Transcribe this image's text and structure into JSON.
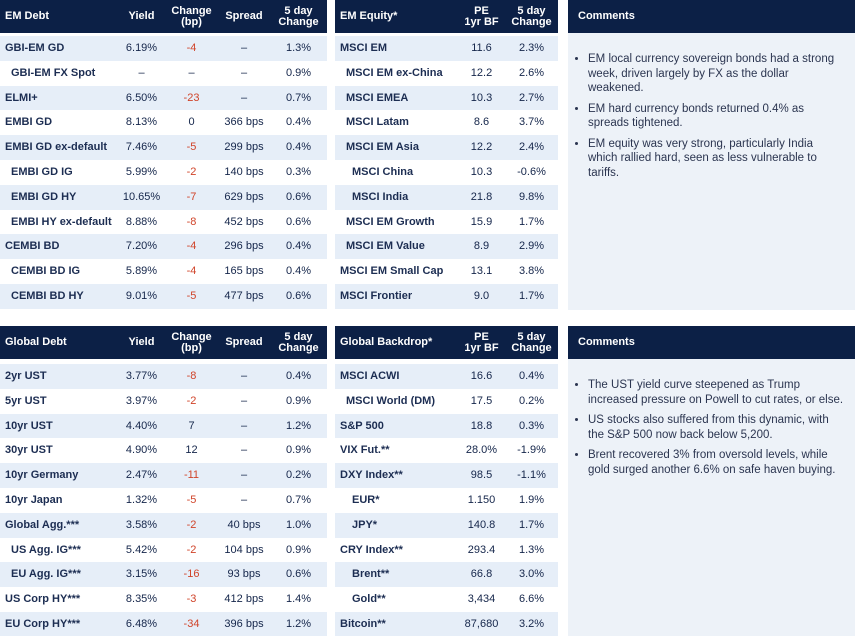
{
  "em_debt": {
    "headers": [
      [
        "EM Debt"
      ],
      [
        "Yield"
      ],
      [
        "Change",
        "(bp)"
      ],
      [
        "Spread"
      ],
      [
        "5 day",
        "Change"
      ]
    ],
    "rows": [
      [
        "GBI-EM GD",
        "6.19%",
        "-4",
        "–",
        "1.3%"
      ],
      [
        "GBI-EM FX Spot",
        "–",
        "–",
        "–",
        "0.9%"
      ],
      [
        "ELMI+",
        "6.50%",
        "-23",
        "–",
        "0.7%"
      ],
      [
        "EMBI GD",
        "8.13%",
        "0",
        "366 bps",
        "0.4%"
      ],
      [
        "EMBI GD ex-default",
        "7.46%",
        "-5",
        "299 bps",
        "0.4%"
      ],
      [
        "EMBI GD IG",
        "5.99%",
        "-2",
        "140 bps",
        "0.3%"
      ],
      [
        "EMBI GD HY",
        "10.65%",
        "-7",
        "629 bps",
        "0.6%"
      ],
      [
        "EMBI HY ex-default",
        "8.88%",
        "-8",
        "452 bps",
        "0.6%"
      ],
      [
        "CEMBI BD",
        "7.20%",
        "-4",
        "296 bps",
        "0.4%"
      ],
      [
        "CEMBI BD IG",
        "5.89%",
        "-4",
        "165 bps",
        "0.4%"
      ],
      [
        "CEMBI BD HY",
        "9.01%",
        "-5",
        "477 bps",
        "0.6%"
      ]
    ]
  },
  "em_equity": {
    "headers": [
      [
        "EM Equity*"
      ],
      [
        "PE",
        "1yr BF"
      ],
      [
        "5 day",
        "Change"
      ]
    ],
    "rows": [
      [
        "MSCI EM",
        "11.6",
        "2.3%"
      ],
      [
        "MSCI EM ex-China",
        "12.2",
        "2.6%"
      ],
      [
        "MSCI EMEA",
        "10.3",
        "2.7%"
      ],
      [
        "MSCI Latam",
        "8.6",
        "3.7%"
      ],
      [
        "MSCI EM Asia",
        "12.2",
        "2.4%"
      ],
      [
        "MSCI China",
        "10.3",
        "-0.6%"
      ],
      [
        "MSCI India",
        "21.8",
        "9.8%"
      ],
      [
        "MSCI EM Growth",
        "15.9",
        "1.7%"
      ],
      [
        "MSCI EM Value",
        "8.9",
        "2.9%"
      ],
      [
        "MSCI EM Small Cap",
        "13.1",
        "3.8%"
      ],
      [
        "MSCI Frontier",
        "9.0",
        "1.7%"
      ]
    ]
  },
  "comments_top": {
    "title": "Comments",
    "bullets": [
      "EM local currency sovereign bonds had a strong week, driven largely by FX as the dollar weakened.",
      "EM hard currency bonds returned 0.4% as spreads tightened.",
      "EM equity was very strong, particularly India which rallied hard, seen as less vulnerable to tariffs."
    ]
  },
  "global_debt": {
    "headers": [
      [
        "Global Debt"
      ],
      [
        "Yield"
      ],
      [
        "Change",
        "(bp)"
      ],
      [
        "Spread"
      ],
      [
        "5 day",
        "Change"
      ]
    ],
    "rows": [
      [
        "2yr UST",
        "3.77%",
        "-8",
        "–",
        "0.4%"
      ],
      [
        "5yr UST",
        "3.97%",
        "-2",
        "–",
        "0.9%"
      ],
      [
        "10yr UST",
        "4.40%",
        "7",
        "–",
        "1.2%"
      ],
      [
        "30yr UST",
        "4.90%",
        "12",
        "–",
        "0.9%"
      ],
      [
        "10yr Germany",
        "2.47%",
        "-11",
        "–",
        "0.2%"
      ],
      [
        "10yr Japan",
        "1.32%",
        "-5",
        "–",
        "0.7%"
      ],
      [
        "Global Agg.***",
        "3.58%",
        "-2",
        "40 bps",
        "1.0%"
      ],
      [
        "US Agg. IG***",
        "5.42%",
        "-2",
        "104 bps",
        "0.9%"
      ],
      [
        "EU Agg. IG***",
        "3.15%",
        "-16",
        "93 bps",
        "0.6%"
      ],
      [
        "US Corp HY***",
        "8.35%",
        "-3",
        "412 bps",
        "1.4%"
      ],
      [
        "EU Corp HY***",
        "6.48%",
        "-34",
        "396 bps",
        "1.2%"
      ]
    ]
  },
  "global_backdrop": {
    "headers": [
      [
        "Global Backdrop*"
      ],
      [
        "PE",
        "1yr BF"
      ],
      [
        "5 day",
        "Change"
      ]
    ],
    "rows": [
      [
        "MSCI ACWI",
        "16.6",
        "0.4%"
      ],
      [
        "MSCI World (DM)",
        "17.5",
        "0.2%"
      ],
      [
        "S&P 500",
        "18.8",
        "0.3%"
      ],
      [
        "VIX Fut.**",
        "28.0%",
        "-1.9%"
      ],
      [
        "DXY Index**",
        "98.5",
        "-1.1%"
      ],
      [
        "EUR*",
        "1.150",
        "1.9%"
      ],
      [
        "JPY*",
        "140.8",
        "1.7%"
      ],
      [
        "CRY Index**",
        "293.4",
        "1.3%"
      ],
      [
        "Brent**",
        "66.8",
        "3.0%"
      ],
      [
        "Gold**",
        "3,434",
        "6.6%"
      ],
      [
        "Bitcoin**",
        "87,680",
        "3.2%"
      ]
    ]
  },
  "comments_bottom": {
    "title": "Comments",
    "bullets": [
      "The UST yield curve steepened as Trump increased pressure on Powell to cut rates, or else.",
      "US stocks also suffered from this dynamic, with the S&P 500 now back below 5,200.",
      "Brent recovered 3% from oversold levels, while gold surged another 6.6% on safe haven buying."
    ]
  }
}
